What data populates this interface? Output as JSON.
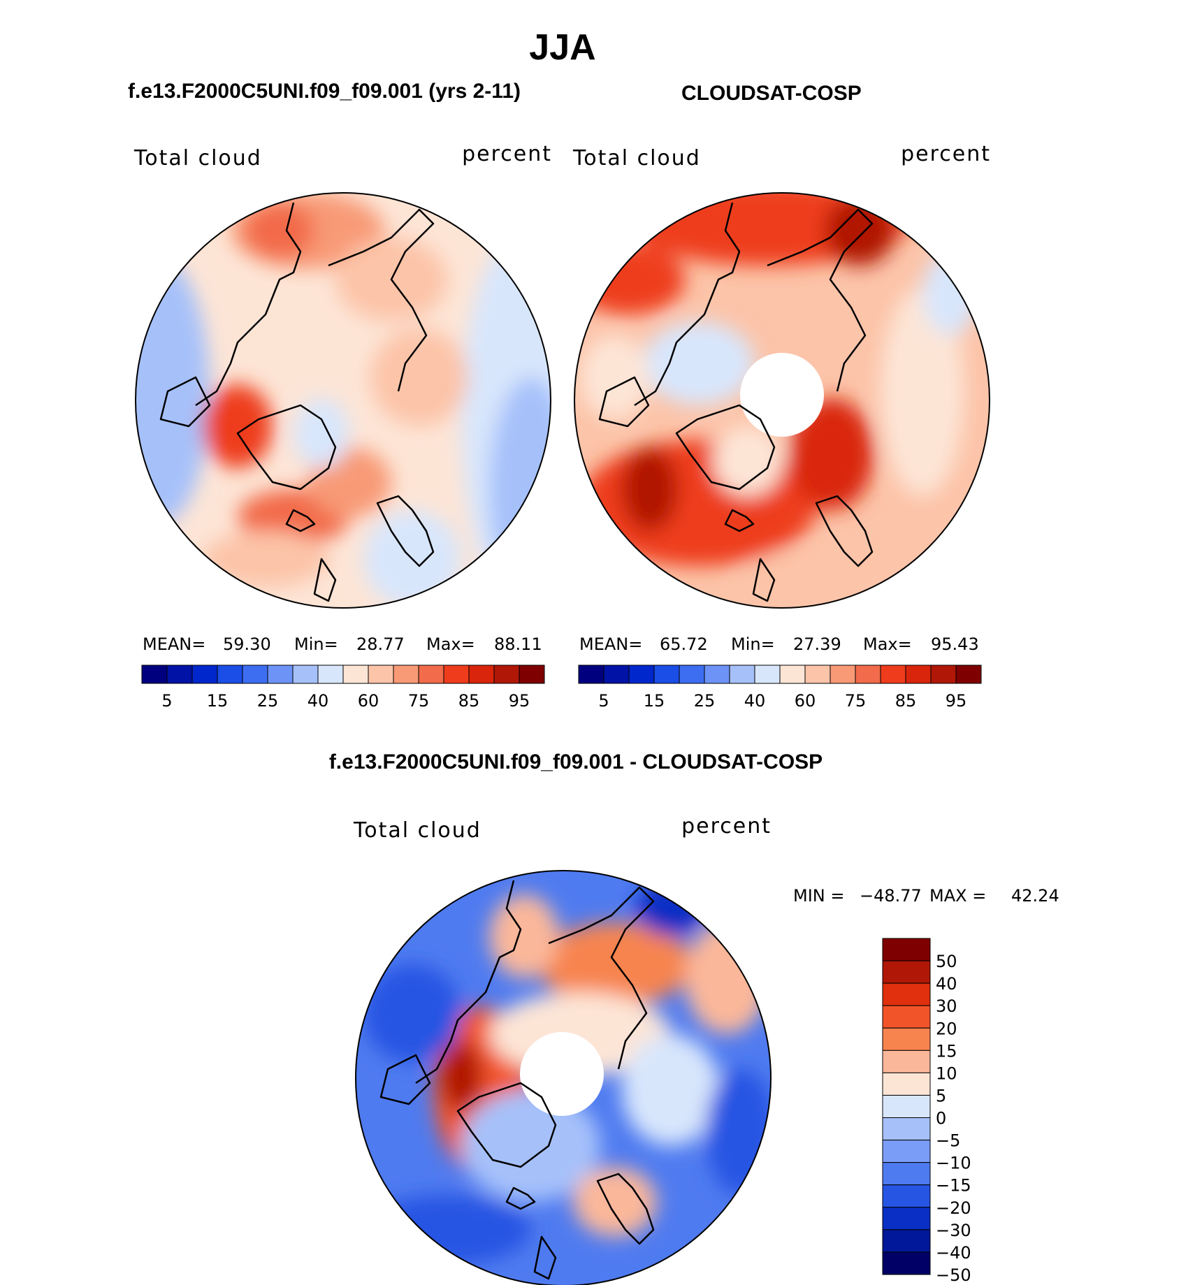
{
  "page_title": "JJA",
  "colors": {
    "map_outline": "#000000",
    "hole": "#ffffff",
    "cb_abs": [
      "#00007f",
      "#0013a6",
      "#0027cc",
      "#1a4ee6",
      "#3d6ef2",
      "#6d93f7",
      "#a6c1fa",
      "#d8e6fc",
      "#fde5d6",
      "#fcc4a9",
      "#f89a76",
      "#f26b4a",
      "#ee3c1c",
      "#d9250c",
      "#b01706",
      "#7f0000"
    ],
    "cb_diff": [
      "#7f0000",
      "#b01706",
      "#e0300e",
      "#f2542a",
      "#f7844f",
      "#fbb79a",
      "#fde5d6",
      "#d8e6fc",
      "#a6c1fa",
      "#7a9df7",
      "#4f7bf0",
      "#2655e3",
      "#0a2fc4",
      "#001899",
      "#000066"
    ]
  },
  "chart_data": [
    {
      "type": "heatmap",
      "panel": "left-top",
      "title": "f.e13.F2000C5UNI.f09_f09.001 (yrs 2-11)",
      "variable": "Total cloud",
      "units": "percent",
      "stats_text": {
        "mean_label": "MEAN=",
        "mean": "59.30",
        "min_label": "Min=",
        "min": "28.77",
        "max_label": "Max=",
        "max": "88.11"
      },
      "colorbar_ticks": [
        "5",
        "15",
        "25",
        "40",
        "60",
        "75",
        "85",
        "95"
      ],
      "colorbar_levels": [
        5,
        10,
        15,
        20,
        25,
        30,
        40,
        50,
        60,
        70,
        75,
        80,
        85,
        90,
        95
      ],
      "field_range": [
        28.77,
        88.11
      ],
      "polar_hole": false
    },
    {
      "type": "heatmap",
      "panel": "right-top",
      "title": "CLOUDSAT-COSP",
      "variable": "Total cloud",
      "units": "percent",
      "stats_text": {
        "mean_label": "MEAN=",
        "mean": "65.72",
        "min_label": "Min=",
        "min": "27.39",
        "max_label": "Max=",
        "max": "95.43"
      },
      "colorbar_ticks": [
        "5",
        "15",
        "25",
        "40",
        "60",
        "75",
        "85",
        "95"
      ],
      "colorbar_levels": [
        5,
        10,
        15,
        20,
        25,
        30,
        40,
        50,
        60,
        70,
        75,
        80,
        85,
        90,
        95
      ],
      "field_range": [
        27.39,
        95.43
      ],
      "polar_hole": true
    },
    {
      "type": "heatmap",
      "panel": "bottom",
      "title": "f.e13.F2000C5UNI.f09_f09.001 - CLOUDSAT-COSP",
      "variable": "Total cloud",
      "units": "percent",
      "stats_text": {
        "min_label": "MIN =",
        "min": "−48.77",
        "max_label": "MAX =",
        "max": "42.24"
      },
      "colorbar_ticks": [
        "50",
        "40",
        "30",
        "20",
        "15",
        "10",
        "5",
        "0",
        "−5",
        "−10",
        "−15",
        "−20",
        "−30",
        "−40",
        "−50"
      ],
      "field_range": [
        -48.77,
        42.24
      ],
      "polar_hole": true
    }
  ]
}
